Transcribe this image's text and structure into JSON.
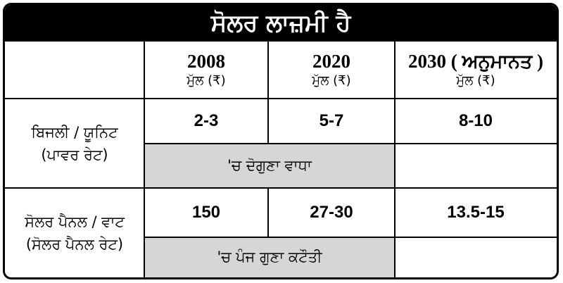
{
  "title": "ਸੋਲਰ ਲਾਜ਼ਮੀ ਹੈ",
  "columns": [
    {
      "year": "2008",
      "unit": "ਮੁੱਲ (₹)"
    },
    {
      "year": "2020",
      "unit": "ਮੁੱਲ (₹)"
    },
    {
      "year": "2030 ( ਅਨੁਮਾਨਤ )",
      "unit": "ਮੁੱਲ (₹)"
    }
  ],
  "rows": [
    {
      "label_line1": "ਬਿਜਲੀ / ਯੂਨਿਟ",
      "label_line2": "(ਪਾਵਰ ਰੇਟ)",
      "values": [
        "2-3",
        "5-7",
        "8-10"
      ],
      "note": "'ਚ ਦੋਗੁਣਾ ਵਾਧਾ"
    },
    {
      "label_line1": "ਸੋਲਰ ਪੈਨਲ / ਵਾਟ",
      "label_line2": "(ਸੋਲਰ ਪੈਨਲ ਰੇਟ)",
      "values": [
        "150",
        "27-30",
        "13.5-15"
      ],
      "note": "'ਚ ਪੰਜ ਗੁਣਾ ਕਟੌਤੀ"
    }
  ],
  "colors": {
    "header_bg": "#000000",
    "header_text": "#ffffff",
    "highlight": "#d6d6d6",
    "border": "#000000"
  }
}
